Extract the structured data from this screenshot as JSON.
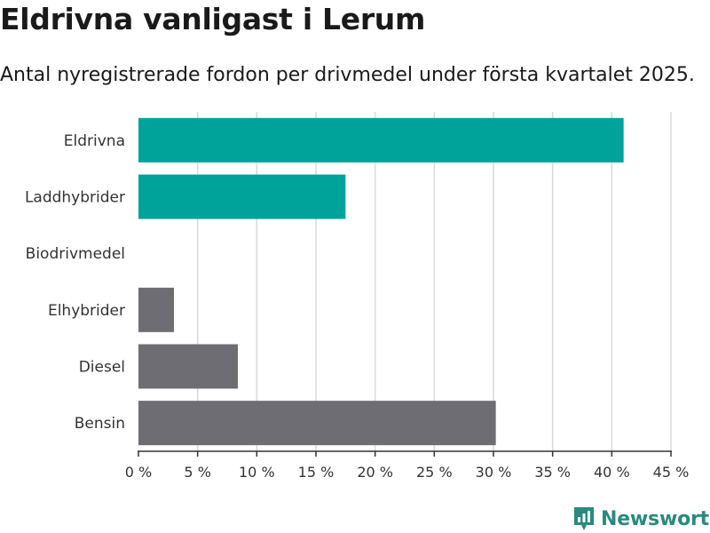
{
  "header": {
    "title": "Eldrivna vanligast i Lerum",
    "subtitle": "Antal nyregistrerade fordon per drivmedel under första kvartalet 2025."
  },
  "brand": {
    "name": "Newsworthy",
    "logo_icon": "newsworthy-logo-icon"
  },
  "colors": {
    "highlight": "#00a39a",
    "default": "#6e6d73",
    "grid": "#d9d9d9",
    "axis": "#333333"
  },
  "chart_data": {
    "type": "bar",
    "orientation": "horizontal",
    "categories": [
      "Eldrivna",
      "Laddhybrider",
      "Biodrivmedel",
      "Elhybrider",
      "Diesel",
      "Bensin"
    ],
    "values": [
      41.0,
      17.5,
      0,
      3.0,
      8.4,
      30.2
    ],
    "highlighted": [
      true,
      true,
      true,
      false,
      false,
      false
    ],
    "unit": "%",
    "xlim": [
      0,
      45
    ],
    "xticks": [
      0,
      5,
      10,
      15,
      20,
      25,
      30,
      35,
      40,
      45
    ],
    "xtick_labels": [
      "0 %",
      "5 %",
      "10 %",
      "15 %",
      "20 %",
      "25 %",
      "30 %",
      "35 %",
      "40 %",
      "45 %"
    ],
    "grid": true,
    "legend": "none"
  }
}
